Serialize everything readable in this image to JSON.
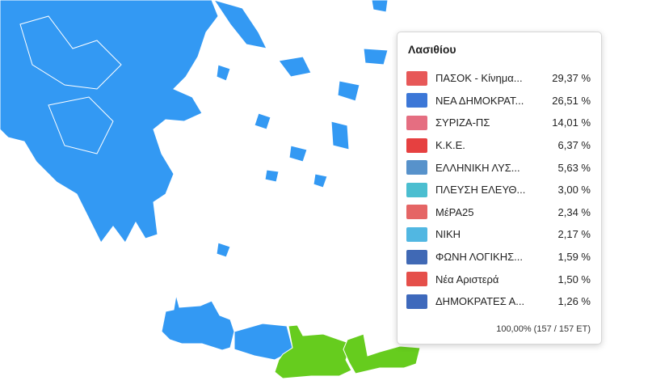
{
  "colors": {
    "blue": "#3399f3",
    "green": "#66cc1e",
    "border": "#ffffff"
  },
  "tooltip": {
    "title": "Λασιθίου",
    "parties": [
      {
        "name": "ΠΑΣΟΚ - Κίνημα...",
        "pct": "29,37 %",
        "logo": "pasok-logo",
        "color": "#e33b3b"
      },
      {
        "name": "ΝΕΑ ΔΗΜΟΚΡΑΤ...",
        "pct": "26,51 %",
        "logo": "nd-logo",
        "color": "#1a5fd0"
      },
      {
        "name": "ΣΥΡΙΖΑ-ΠΣ",
        "pct": "14,01 %",
        "logo": "syriza-logo",
        "color": "#e0556b"
      },
      {
        "name": "Κ.Κ.Ε.",
        "pct": "6,37 %",
        "logo": "kke-logo",
        "color": "#e21e1e"
      },
      {
        "name": "ΕΛΛΗΝΙΚΗ ΛΥΣ...",
        "pct": "5,63 %",
        "logo": "elliniki-lysi-logo",
        "color": "#3a7fc2"
      },
      {
        "name": "ΠΛΕΥΣΗ ΕΛΕΥΘ...",
        "pct": "3,00 %",
        "logo": "plefsi-logo",
        "color": "#2bb3c8"
      },
      {
        "name": "ΜέΡΑ25",
        "pct": "2,34 %",
        "logo": "mera25-logo",
        "color": "#e04a4a"
      },
      {
        "name": "ΝΙΚΗ",
        "pct": "2,17 %",
        "logo": "niki-logo",
        "color": "#33aadd"
      },
      {
        "name": "ΦΩΝΗ ΛΟΓΙΚΗΣ...",
        "pct": "1,59 %",
        "logo": "foni-logikis-logo",
        "color": "#1f4fa8"
      },
      {
        "name": "Νέα Αριστερά",
        "pct": "1,50 %",
        "logo": "nea-aristera-logo",
        "color": "#e0302a"
      },
      {
        "name": "ΔΗΜΟΚΡΑΤΕΣ Α...",
        "pct": "1,26 %",
        "logo": "dimokrates-logo",
        "color": "#1c4fb0"
      }
    ],
    "footer": "100,00% (157 / 157 ΕΤ)"
  }
}
